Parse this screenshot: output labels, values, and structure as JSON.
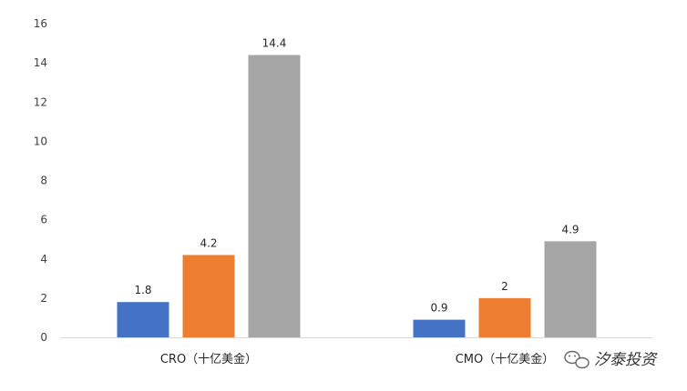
{
  "chart_data": {
    "type": "bar",
    "categories": [
      "CRO（十亿美金）",
      "CMO（十亿美金）"
    ],
    "series": [
      {
        "values": [
          1.8,
          0.9
        ],
        "color": "#4472C4",
        "labels": [
          "1.8",
          "0.9"
        ]
      },
      {
        "values": [
          4.2,
          2.0
        ],
        "color": "#ED7D31",
        "labels": [
          "4.2",
          "2"
        ]
      },
      {
        "values": [
          14.4,
          4.9
        ],
        "color": "#A5A5A5",
        "labels": [
          "14.4",
          "4.9"
        ]
      }
    ],
    "ylim": [
      0,
      16
    ],
    "yticks": [
      0,
      2,
      4,
      6,
      8,
      10,
      12,
      14,
      16
    ],
    "grid": false,
    "legend": "none"
  },
  "watermark": {
    "text": "汐泰投资",
    "icon": "wechat-icon"
  }
}
